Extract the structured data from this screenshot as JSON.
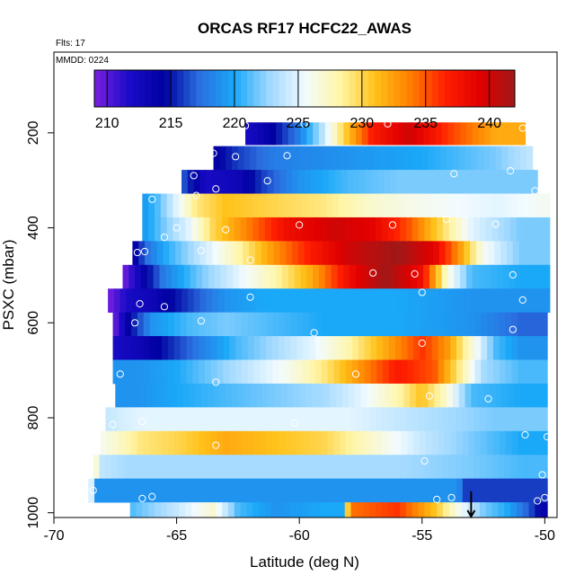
{
  "chart_data": {
    "type": "heatmap",
    "title": "ORCAS RF17 HCFC22_AWAS",
    "flights_label": "Flts: 17",
    "date_label": "MMDD: 0224",
    "xlabel": "Latitude (deg N)",
    "ylabel": "PSXC (mbar)",
    "xlim": [
      -70,
      -49.5
    ],
    "ylim": [
      1010,
      30
    ],
    "x_ticks": [
      -70,
      -65,
      -60,
      -55,
      -50
    ],
    "x_tick_labels": [
      "-70",
      "-65",
      "-60",
      "-55",
      "-50"
    ],
    "y_ticks": [
      200,
      400,
      600,
      800,
      1000
    ],
    "y_tick_labels": [
      "200",
      "400",
      "600",
      "800",
      "1000"
    ],
    "colorbar": {
      "min": 209,
      "max": 242,
      "ticks": [
        210,
        215,
        220,
        225,
        230,
        235,
        240
      ],
      "tick_labels": [
        "210",
        "215",
        "220",
        "225",
        "230",
        "235",
        "240"
      ],
      "colors": [
        "#7a1fe0",
        "#1a0cc8",
        "#0000a0",
        "#2a6fe0",
        "#1aa8f8",
        "#9fd8ff",
        "#f2fbff",
        "#fff6a8",
        "#ffc21a",
        "#ff8000",
        "#ff2000",
        "#e00000",
        "#a01818"
      ]
    },
    "bands": [
      {
        "p_top": 178,
        "p_bot": 225,
        "lat_start": -62.2,
        "lat_end": -50.8,
        "profile": [
          [
            -62.2,
            212
          ],
          [
            -61.2,
            214
          ],
          [
            -60.0,
            218
          ],
          [
            -59.0,
            224
          ],
          [
            -58.2,
            230
          ],
          [
            -57.0,
            237
          ],
          [
            -55.5,
            240
          ],
          [
            -54.0,
            236
          ],
          [
            -52.0,
            232
          ],
          [
            -50.8,
            232
          ]
        ]
      },
      {
        "p_top": 228,
        "p_bot": 278,
        "lat_start": -63.5,
        "lat_end": -50.5,
        "profile": [
          [
            -63.5,
            214
          ],
          [
            -62.5,
            216
          ],
          [
            -61.0,
            218
          ],
          [
            -58.0,
            219
          ],
          [
            -55.0,
            220
          ],
          [
            -52.0,
            222
          ],
          [
            -50.5,
            224
          ]
        ]
      },
      {
        "p_top": 278,
        "p_bot": 328,
        "lat_start": -64.8,
        "lat_end": -50.3,
        "profile": [
          [
            -64.8,
            217
          ],
          [
            -63.8,
            212
          ],
          [
            -62.5,
            213
          ],
          [
            -61.5,
            216
          ],
          [
            -60.0,
            219
          ],
          [
            -58.0,
            221
          ],
          [
            -56.0,
            222
          ],
          [
            -53.0,
            222
          ],
          [
            -50.3,
            222
          ]
        ]
      },
      {
        "p_top": 328,
        "p_bot": 378,
        "lat_start": -66.4,
        "lat_end": -49.8,
        "profile": [
          [
            -66.4,
            219
          ],
          [
            -65.8,
            221
          ],
          [
            -65.0,
            225
          ],
          [
            -64.2,
            229
          ],
          [
            -63.0,
            231
          ],
          [
            -61.0,
            230
          ],
          [
            -59.0,
            229
          ],
          [
            -57.0,
            227
          ],
          [
            -55.0,
            226
          ],
          [
            -52.0,
            225
          ],
          [
            -49.8,
            226
          ]
        ]
      },
      {
        "p_top": 378,
        "p_bot": 428,
        "lat_start": -66.4,
        "lat_end": -49.8,
        "profile": [
          [
            -66.4,
            219
          ],
          [
            -65.5,
            222
          ],
          [
            -64.5,
            225
          ],
          [
            -63.5,
            230
          ],
          [
            -62.0,
            234
          ],
          [
            -60.5,
            238
          ],
          [
            -58.5,
            240
          ],
          [
            -57.0,
            239
          ],
          [
            -55.5,
            235
          ],
          [
            -54.0,
            229
          ],
          [
            -53.0,
            225
          ],
          [
            -51.0,
            222
          ],
          [
            -49.8,
            222
          ]
        ]
      },
      {
        "p_top": 428,
        "p_bot": 478,
        "lat_start": -66.8,
        "lat_end": -49.8,
        "profile": [
          [
            -66.8,
            213
          ],
          [
            -66.3,
            217
          ],
          [
            -65.5,
            220
          ],
          [
            -64.0,
            224
          ],
          [
            -62.5,
            228
          ],
          [
            -61.0,
            233
          ],
          [
            -59.5,
            237
          ],
          [
            -58.0,
            240
          ],
          [
            -56.0,
            242
          ],
          [
            -54.5,
            239
          ],
          [
            -53.5,
            233
          ],
          [
            -52.5,
            226
          ],
          [
            -51.0,
            222
          ],
          [
            -49.8,
            222
          ]
        ]
      },
      {
        "p_top": 478,
        "p_bot": 528,
        "lat_start": -67.2,
        "lat_end": -49.8,
        "profile": [
          [
            -67.2,
            209
          ],
          [
            -66.5,
            213
          ],
          [
            -65.5,
            218
          ],
          [
            -64.0,
            222
          ],
          [
            -62.5,
            225
          ],
          [
            -61.0,
            228
          ],
          [
            -59.5,
            232
          ],
          [
            -58.0,
            238
          ],
          [
            -56.5,
            242
          ],
          [
            -55.0,
            238
          ],
          [
            -54.0,
            227
          ],
          [
            -53.0,
            221
          ],
          [
            -51.0,
            220
          ],
          [
            -49.8,
            220
          ]
        ]
      },
      {
        "p_top": 528,
        "p_bot": 578,
        "lat_start": -67.8,
        "lat_end": -49.8,
        "profile": [
          [
            -67.8,
            209
          ],
          [
            -67.0,
            212
          ],
          [
            -66.0,
            213
          ],
          [
            -64.5,
            216
          ],
          [
            -63.0,
            219
          ],
          [
            -61.5,
            220
          ],
          [
            -59.0,
            220
          ],
          [
            -56.0,
            220
          ],
          [
            -53.0,
            219
          ],
          [
            -51.0,
            219
          ],
          [
            -49.8,
            219
          ]
        ]
      },
      {
        "p_top": 578,
        "p_bot": 628,
        "lat_start": -67.6,
        "lat_end": -49.9,
        "profile": [
          [
            -67.6,
            209
          ],
          [
            -67.0,
            214
          ],
          [
            -66.0,
            219
          ],
          [
            -64.5,
            221
          ],
          [
            -63.0,
            222
          ],
          [
            -61.0,
            221
          ],
          [
            -59.0,
            220
          ],
          [
            -56.0,
            220
          ],
          [
            -53.0,
            219
          ],
          [
            -51.0,
            217
          ],
          [
            -49.9,
            217
          ]
        ]
      },
      {
        "p_top": 628,
        "p_bot": 678,
        "lat_start": -67.6,
        "lat_end": -49.9,
        "profile": [
          [
            -67.6,
            212
          ],
          [
            -66.5,
            213
          ],
          [
            -65.5,
            215
          ],
          [
            -64.0,
            218
          ],
          [
            -62.5,
            221
          ],
          [
            -61.0,
            223
          ],
          [
            -59.5,
            225
          ],
          [
            -58.0,
            228
          ],
          [
            -56.5,
            232
          ],
          [
            -55.0,
            236
          ],
          [
            -54.0,
            233
          ],
          [
            -53.0,
            227
          ],
          [
            -52.0,
            221
          ],
          [
            -51.0,
            219
          ],
          [
            -49.9,
            219
          ]
        ]
      },
      {
        "p_top": 678,
        "p_bot": 728,
        "lat_start": -67.6,
        "lat_end": -49.9,
        "profile": [
          [
            -67.6,
            219
          ],
          [
            -66.5,
            219
          ],
          [
            -65.0,
            220
          ],
          [
            -63.5,
            222
          ],
          [
            -62.0,
            224
          ],
          [
            -60.5,
            226
          ],
          [
            -59.0,
            229
          ],
          [
            -57.5,
            233
          ],
          [
            -56.0,
            237
          ],
          [
            -54.5,
            235
          ],
          [
            -53.5,
            229
          ],
          [
            -52.5,
            223
          ],
          [
            -51.0,
            221
          ],
          [
            -49.9,
            221
          ]
        ]
      },
      {
        "p_top": 728,
        "p_bot": 778,
        "lat_start": -67.5,
        "lat_end": -49.9,
        "profile": [
          [
            -67.5,
            219
          ],
          [
            -66.5,
            219
          ],
          [
            -65.0,
            220
          ],
          [
            -63.0,
            221
          ],
          [
            -61.0,
            222
          ],
          [
            -59.0,
            223
          ],
          [
            -57.5,
            225
          ],
          [
            -56.0,
            228
          ],
          [
            -55.0,
            231
          ],
          [
            -54.0,
            227
          ],
          [
            -53.0,
            221
          ],
          [
            -51.0,
            220
          ],
          [
            -49.9,
            220
          ]
        ]
      },
      {
        "p_top": 778,
        "p_bot": 828,
        "lat_start": -67.9,
        "lat_end": -49.9,
        "profile": [
          [
            -67.9,
            224
          ],
          [
            -66.5,
            225
          ],
          [
            -64.0,
            225
          ],
          [
            -61.0,
            225
          ],
          [
            -58.0,
            225
          ],
          [
            -56.0,
            224
          ],
          [
            -54.0,
            223
          ],
          [
            -52.0,
            222
          ],
          [
            -50.5,
            222
          ],
          [
            -49.9,
            222
          ]
        ]
      },
      {
        "p_top": 828,
        "p_bot": 878,
        "lat_start": -68.1,
        "lat_end": -49.9,
        "profile": [
          [
            -68.1,
            226
          ],
          [
            -67.5,
            227
          ],
          [
            -66.5,
            229
          ],
          [
            -65.0,
            230
          ],
          [
            -63.0,
            232
          ],
          [
            -61.0,
            231
          ],
          [
            -59.0,
            230
          ],
          [
            -57.0,
            227
          ],
          [
            -55.0,
            224
          ],
          [
            -53.0,
            222
          ],
          [
            -51.0,
            220
          ],
          [
            -49.9,
            220
          ]
        ]
      },
      {
        "p_top": 878,
        "p_bot": 928,
        "lat_start": -68.4,
        "lat_end": -49.9,
        "profile": [
          [
            -68.4,
            231
          ],
          [
            -68.2,
            224
          ],
          [
            -67.0,
            223
          ],
          [
            -65.0,
            223
          ],
          [
            -62.0,
            223
          ],
          [
            -59.0,
            223
          ],
          [
            -56.0,
            223
          ],
          [
            -53.0,
            222
          ],
          [
            -51.0,
            221
          ],
          [
            -49.9,
            221
          ]
        ]
      },
      {
        "p_top": 928,
        "p_bot": 978,
        "lat_start": -68.6,
        "lat_end": -49.9,
        "profile": [
          [
            -68.6,
            234
          ],
          [
            -68.4,
            219
          ],
          [
            -66.5,
            219
          ],
          [
            -63.0,
            219
          ],
          [
            -59.0,
            219
          ],
          [
            -55.0,
            219
          ],
          [
            -53.5,
            219
          ],
          [
            -53.4,
            216
          ],
          [
            -51.0,
            216
          ],
          [
            -49.9,
            216
          ]
        ]
      },
      {
        "p_top": 978,
        "p_bot": 1010,
        "lat_start": -66.9,
        "lat_end": -49.9,
        "profile": [
          [
            -66.9,
            221
          ],
          [
            -65.0,
            224
          ],
          [
            -63.5,
            227
          ],
          [
            -62.5,
            221
          ],
          [
            -61.0,
            219
          ],
          [
            -59.0,
            220
          ],
          [
            -58.1,
            220
          ],
          [
            -58.0,
            234
          ],
          [
            -56.0,
            236
          ],
          [
            -54.5,
            231
          ],
          [
            -53.5,
            226
          ],
          [
            -52.5,
            222
          ],
          [
            -51.5,
            220
          ],
          [
            -50.5,
            216
          ],
          [
            -49.9,
            213
          ]
        ]
      }
    ],
    "sample_points": [
      [
        -62.2,
        185
      ],
      [
        -59.8,
        180
      ],
      [
        -56.4,
        181
      ],
      [
        -50.9,
        190
      ],
      [
        -63.5,
        243
      ],
      [
        -62.6,
        250
      ],
      [
        -60.5,
        248
      ],
      [
        -64.3,
        290
      ],
      [
        -61.3,
        301
      ],
      [
        -53.7,
        286
      ],
      [
        -51.4,
        280
      ],
      [
        -66.0,
        340
      ],
      [
        -64.2,
        332
      ],
      [
        -63.4,
        318
      ],
      [
        -50.4,
        322
      ],
      [
        -65.0,
        400
      ],
      [
        -65.5,
        420
      ],
      [
        -63.0,
        404
      ],
      [
        -60.0,
        394
      ],
      [
        -56.2,
        394
      ],
      [
        -54.0,
        382
      ],
      [
        -52.0,
        392
      ],
      [
        -66.6,
        452
      ],
      [
        -66.3,
        450
      ],
      [
        -64.0,
        448
      ],
      [
        -62.0,
        468
      ],
      [
        -57.0,
        495
      ],
      [
        -55.3,
        497
      ],
      [
        -51.3,
        499
      ],
      [
        -66.5,
        560
      ],
      [
        -65.5,
        566
      ],
      [
        -62.0,
        546
      ],
      [
        -55.0,
        536
      ],
      [
        -50.9,
        552
      ],
      [
        -66.7,
        600
      ],
      [
        -64.0,
        596
      ],
      [
        -59.4,
        621
      ],
      [
        -55.0,
        643
      ],
      [
        -51.3,
        614
      ],
      [
        -67.3,
        708
      ],
      [
        -63.4,
        725
      ],
      [
        -57.7,
        708
      ],
      [
        -54.7,
        754
      ],
      [
        -52.3,
        760
      ],
      [
        -67.6,
        814
      ],
      [
        -66.4,
        808
      ],
      [
        -60.2,
        811
      ],
      [
        -50.8,
        836
      ],
      [
        -49.9,
        840
      ],
      [
        -63.4,
        858
      ],
      [
        -54.9,
        891
      ],
      [
        -50.1,
        920
      ],
      [
        -68.4,
        953
      ],
      [
        -66.4,
        970
      ],
      [
        -66.0,
        966
      ],
      [
        -54.4,
        972
      ],
      [
        -53.8,
        968
      ],
      [
        -50.3,
        975
      ],
      [
        -50.0,
        968
      ]
    ],
    "marker": {
      "lat": -53.0,
      "p_from": 955,
      "p_to": 1008
    }
  }
}
